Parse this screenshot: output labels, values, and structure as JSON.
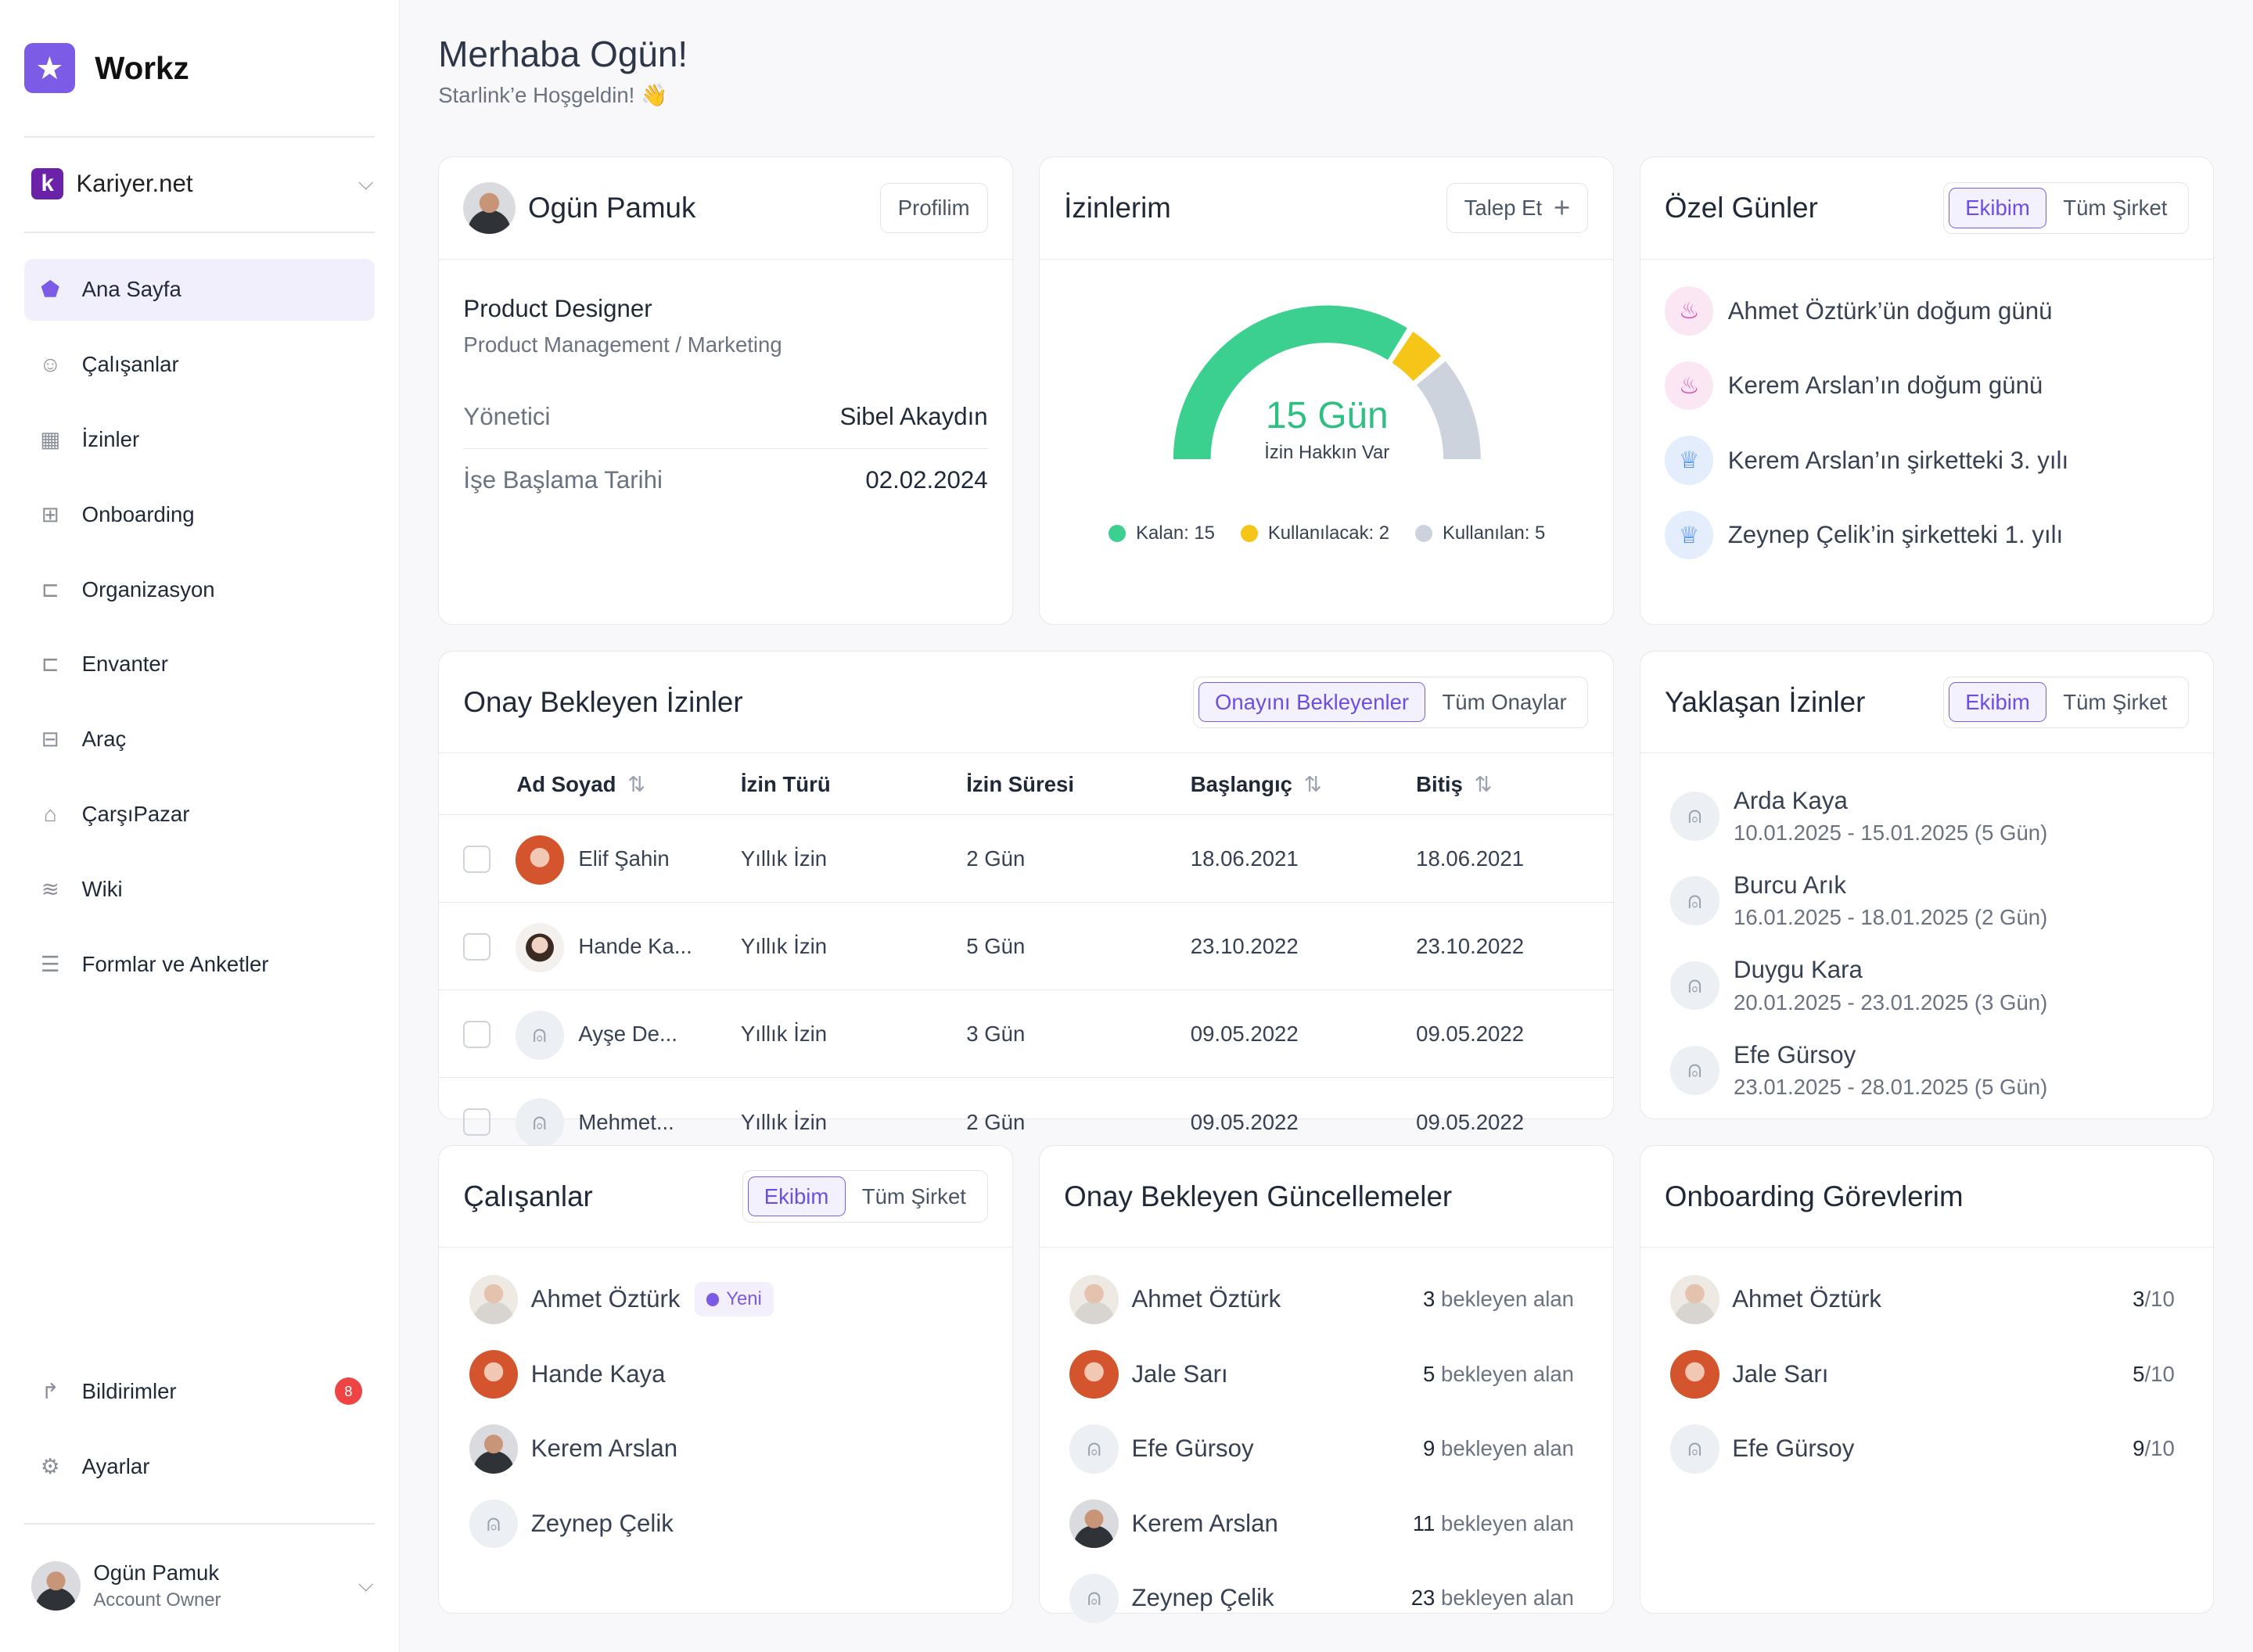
{
  "app": {
    "name": "Workz"
  },
  "company": {
    "name": "Kariyer.net"
  },
  "nav": [
    {
      "label": "Ana Sayfa",
      "icon": "home-icon",
      "active": true
    },
    {
      "label": "Çalışanlar",
      "icon": "users-icon"
    },
    {
      "label": "İzinler",
      "icon": "calendar-icon"
    },
    {
      "label": "Onboarding",
      "icon": "onboarding-icon"
    },
    {
      "label": "Organizasyon",
      "icon": "org-chart-icon"
    },
    {
      "label": "Envanter",
      "icon": "inventory-icon"
    },
    {
      "label": "Araç",
      "icon": "car-icon"
    },
    {
      "label": "ÇarşıPazar",
      "icon": "shopping-bag-icon"
    },
    {
      "label": "Wiki",
      "icon": "wiki-icon"
    },
    {
      "label": "Formlar ve Anketler",
      "icon": "forms-icon"
    }
  ],
  "bottom_nav": [
    {
      "label": "Bildirimler",
      "icon": "bell-icon",
      "badge": "8"
    },
    {
      "label": "Ayarlar",
      "icon": "settings-icon"
    }
  ],
  "user": {
    "name": "Ogün Pamuk",
    "role": "Account Owner"
  },
  "header": {
    "greeting": "Merhaba Ogün!",
    "subtitle": "Starlink’e Hoşgeldin! 👋"
  },
  "profile_card": {
    "name": "Ogün Pamuk",
    "button": "Profilim",
    "title": "Product Designer",
    "department": "Product Management / Marketing",
    "manager_label": "Yönetici",
    "manager_value": "Sibel Akaydın",
    "start_label": "İşe Başlama Tarihi",
    "start_value": "02.02.2024"
  },
  "leave_card": {
    "title": "İzinlerim",
    "button": "Talep Et",
    "center_value": "15 Gün",
    "center_label": "İzin Hakkın Var",
    "legend": [
      {
        "label": "Kalan: 15",
        "color": "#3bd08f"
      },
      {
        "label": "Kullanılacak: 2",
        "color": "#f5c518"
      },
      {
        "label": "Kullanılan: 5",
        "color": "#cdd3dc"
      }
    ],
    "segments": {
      "remaining": 15,
      "planned": 2,
      "used": 5
    }
  },
  "special_days": {
    "title": "Özel Günler",
    "tabs": [
      "Ekibim",
      "Tüm Şirket"
    ],
    "items": [
      {
        "text": "Ahmet Öztürk’ün doğum günü",
        "icon": "cake-icon"
      },
      {
        "text": "Kerem Arslan’ın doğum günü",
        "icon": "cake-icon"
      },
      {
        "text": "Kerem Arslan’ın şirketteki 3. yılı",
        "icon": "trophy-icon"
      },
      {
        "text": "Zeynep Çelik’in şirketteki 1. yılı",
        "icon": "trophy-icon"
      }
    ]
  },
  "pending_leaves": {
    "title": "Onay Bekleyen İzinler",
    "tabs": [
      "Onayını Bekleyenler",
      "Tüm Onaylar"
    ],
    "columns": [
      "Ad Soyad",
      "İzin Türü",
      "İzin Süresi",
      "Başlangıç",
      "Bitiş"
    ],
    "rows": [
      {
        "name": "Elif Şahin",
        "type": "Yıllık İzin",
        "duration": "2 Gün",
        "start": "18.06.2021",
        "end": "18.06.2021"
      },
      {
        "name": "Hande Ka...",
        "type": "Yıllık İzin",
        "duration": "5 Gün",
        "start": "23.10.2022",
        "end": "23.10.2022"
      },
      {
        "name": "Ayşe De...",
        "type": "Yıllık İzin",
        "duration": "3 Gün",
        "start": "09.05.2022",
        "end": "09.05.2022"
      },
      {
        "name": "Mehmet...",
        "type": "Yıllık İzin",
        "duration": "2 Gün",
        "start": "09.05.2022",
        "end": "09.05.2022"
      }
    ]
  },
  "upcoming_leaves": {
    "title": "Yaklaşan İzinler",
    "tabs": [
      "Ekibim",
      "Tüm Şirket"
    ],
    "items": [
      {
        "name": "Arda Kaya",
        "dates": "10.01.2025 - 15.01.2025 (5 Gün)"
      },
      {
        "name": "Burcu Arık",
        "dates": "16.01.2025 - 18.01.2025 (2 Gün)"
      },
      {
        "name": "Duygu Kara",
        "dates": "20.01.2025 - 23.01.2025 (3 Gün)"
      },
      {
        "name": "Efe Gürsoy",
        "dates": "23.01.2025 - 28.01.2025 (5 Gün)"
      }
    ]
  },
  "employees": {
    "title": "Çalışanlar",
    "tabs": [
      "Ekibim",
      "Tüm Şirket"
    ],
    "new_badge": "Yeni",
    "items": [
      {
        "name": "Ahmet Öztürk"
      },
      {
        "name": "Hande Kaya"
      },
      {
        "name": "Kerem Arslan"
      },
      {
        "name": "Zeynep Çelik"
      }
    ]
  },
  "pending_updates": {
    "title": "Onay Bekleyen Güncellemeler",
    "suffix": "bekleyen alan",
    "items": [
      {
        "name": "Ahmet Öztürk",
        "count": "3"
      },
      {
        "name": "Jale Sarı",
        "count": "5"
      },
      {
        "name": "Efe Gürsoy",
        "count": "9"
      },
      {
        "name": "Kerem Arslan",
        "count": "11"
      },
      {
        "name": "Zeynep Çelik",
        "count": "23"
      }
    ]
  },
  "onboarding_tasks": {
    "title": "Onboarding Görevlerim",
    "items": [
      {
        "name": "Ahmet Öztürk",
        "done": "3",
        "total": "/10"
      },
      {
        "name": "Jale Sarı",
        "done": "5",
        "total": "/10"
      },
      {
        "name": "Efe Gürsoy",
        "done": "9",
        "total": "/10"
      }
    ]
  }
}
